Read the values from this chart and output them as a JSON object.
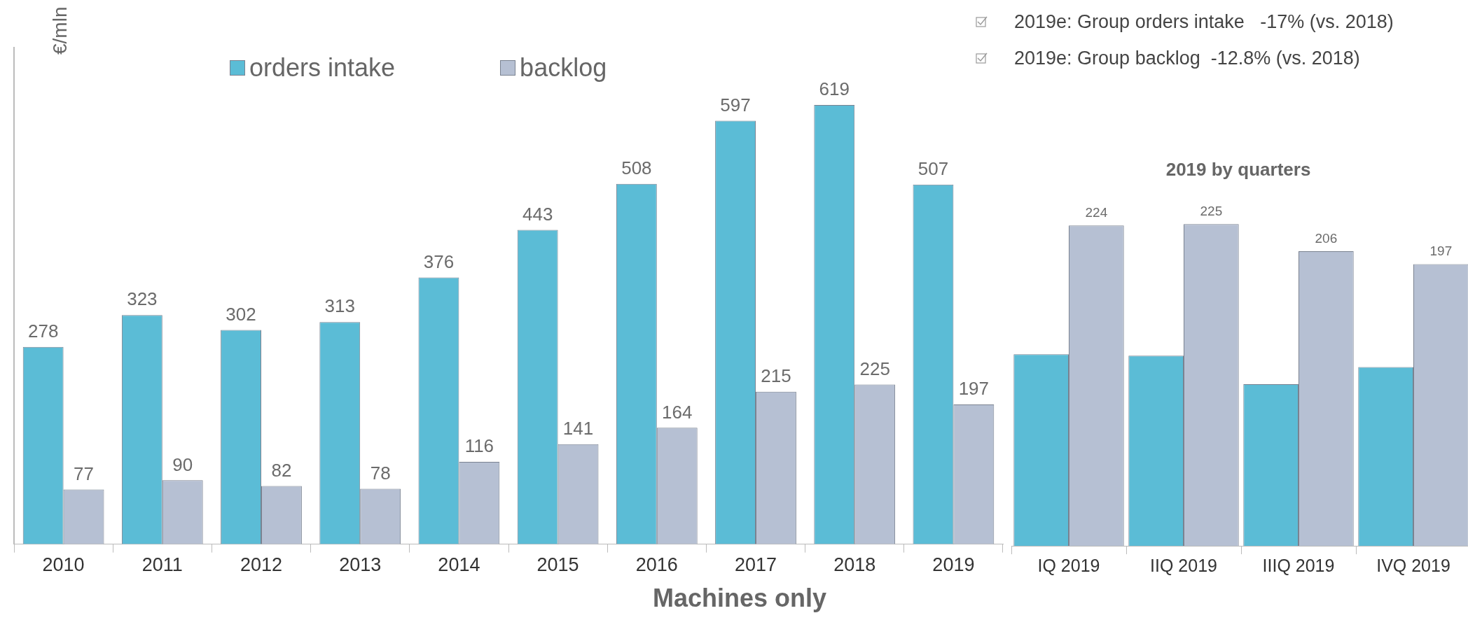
{
  "chart_data": [
    {
      "type": "bar",
      "ylabel": "€/mln",
      "xlabel": "Machines only",
      "legend": "top",
      "data_labels": true,
      "annotations": [
        "2019e: Group orders intake   -17% (vs. 2018)",
        "2019e: Group backlog  -12.8% (vs. 2018)"
      ],
      "categories": [
        "2010",
        "2011",
        "2012",
        "2013",
        "2014",
        "2015",
        "2016",
        "2017",
        "2018",
        "2019"
      ],
      "series": [
        {
          "name": "orders intake",
          "color": "#5bbcd6",
          "values": [
            278,
            323,
            302,
            313,
            376,
            443,
            508,
            597,
            619,
            507
          ]
        },
        {
          "name": "backlog",
          "color": "#b6c0d3",
          "values": [
            77,
            90,
            82,
            78,
            116,
            141,
            164,
            215,
            225,
            197
          ]
        }
      ]
    },
    {
      "type": "bar",
      "title": "2019 by quarters",
      "categories": [
        "IQ 2019",
        "IIQ 2019",
        "IIIQ 2019",
        "IVQ 2019"
      ],
      "series": [
        {
          "color": "#5bbcd6",
          "values": [
            134,
            133,
            113,
            125
          ],
          "value_labels": [
            null,
            null,
            null,
            null
          ]
        },
        {
          "color": "#b6c0d3",
          "values": [
            224,
            225,
            206,
            197
          ],
          "value_labels": [
            "224",
            "225",
            "206",
            "197"
          ]
        }
      ]
    }
  ]
}
